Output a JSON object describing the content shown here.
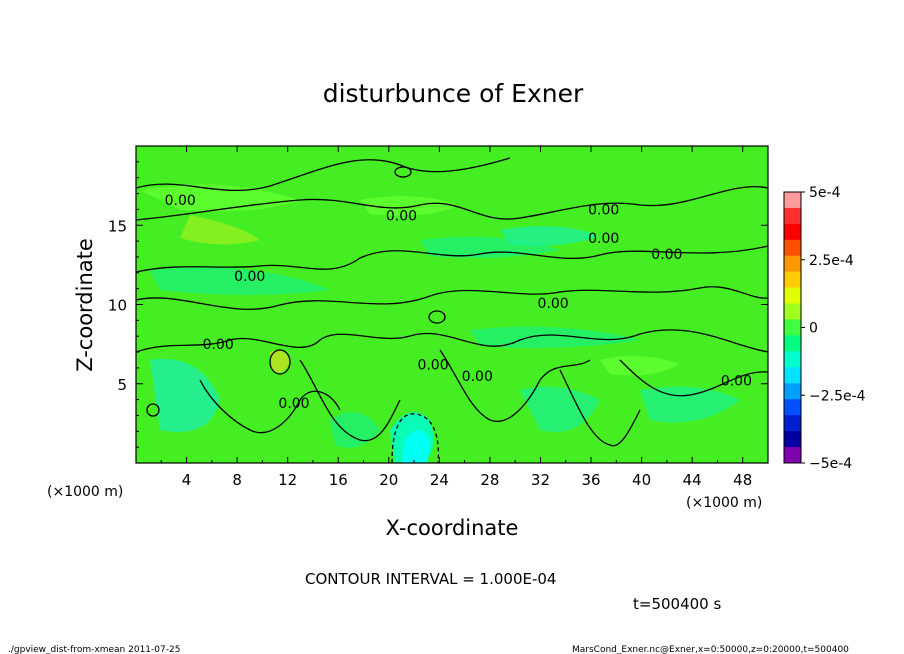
{
  "chart_data": {
    "type": "heatmap",
    "title": "disturbunce of Exner",
    "xlabel": "X-coordinate",
    "ylabel": "Z-coordinate",
    "x_unit": "(×1000 m)",
    "y_unit": "(×1000 m)",
    "xlim": [
      0,
      50
    ],
    "ylim": [
      0,
      20
    ],
    "x_ticks": [
      "4",
      "8",
      "12",
      "16",
      "20",
      "24",
      "28",
      "32",
      "36",
      "40",
      "44",
      "48"
    ],
    "y_ticks": [
      "5",
      "10",
      "15"
    ],
    "colorbar": {
      "range": [
        -0.0005,
        0.0005
      ],
      "labels": [
        "5e-4",
        "2.5e-4",
        "0",
        "−2.5e-4",
        "−5e-4"
      ],
      "colors": [
        "#ff9b9b",
        "#ff3030",
        "#ff0000",
        "#ff5000",
        "#ff9800",
        "#ffcc00",
        "#e0ff00",
        "#a0ff20",
        "#40ff40",
        "#00ff80",
        "#00ffcc",
        "#00e0ff",
        "#00a0ff",
        "#0050ff",
        "#0020d0",
        "#0000a0",
        "#8000b0"
      ]
    },
    "contour_labels": [
      {
        "text": "0.00",
        "x": 3.5,
        "z": 16.6
      },
      {
        "text": "0.00",
        "x": 21.0,
        "z": 15.6
      },
      {
        "text": "0.00",
        "x": 37.0,
        "z": 16.0
      },
      {
        "text": "0.00",
        "x": 37.0,
        "z": 14.2
      },
      {
        "text": "0.00",
        "x": 42.0,
        "z": 13.2
      },
      {
        "text": "0.00",
        "x": 9.0,
        "z": 11.8
      },
      {
        "text": "0.00",
        "x": 33.0,
        "z": 10.1
      },
      {
        "text": "0.00",
        "x": 6.5,
        "z": 7.5
      },
      {
        "text": "0.00",
        "x": 23.5,
        "z": 6.2
      },
      {
        "text": "0.00",
        "x": 27.0,
        "z": 5.5
      },
      {
        "text": "0.00",
        "x": 12.5,
        "z": 3.8
      },
      {
        "text": "0.00",
        "x": 47.5,
        "z": 5.2
      }
    ],
    "contour_interval_text": "CONTOUR INTERVAL = 1.000E-04",
    "time_text": "t=500400 s"
  },
  "footer": {
    "left": "./gpview_dist-from-xmean  2011-07-25",
    "right": "MarsCond_Exner.nc@Exner,x=0:50000,z=0:20000,t=500400"
  }
}
